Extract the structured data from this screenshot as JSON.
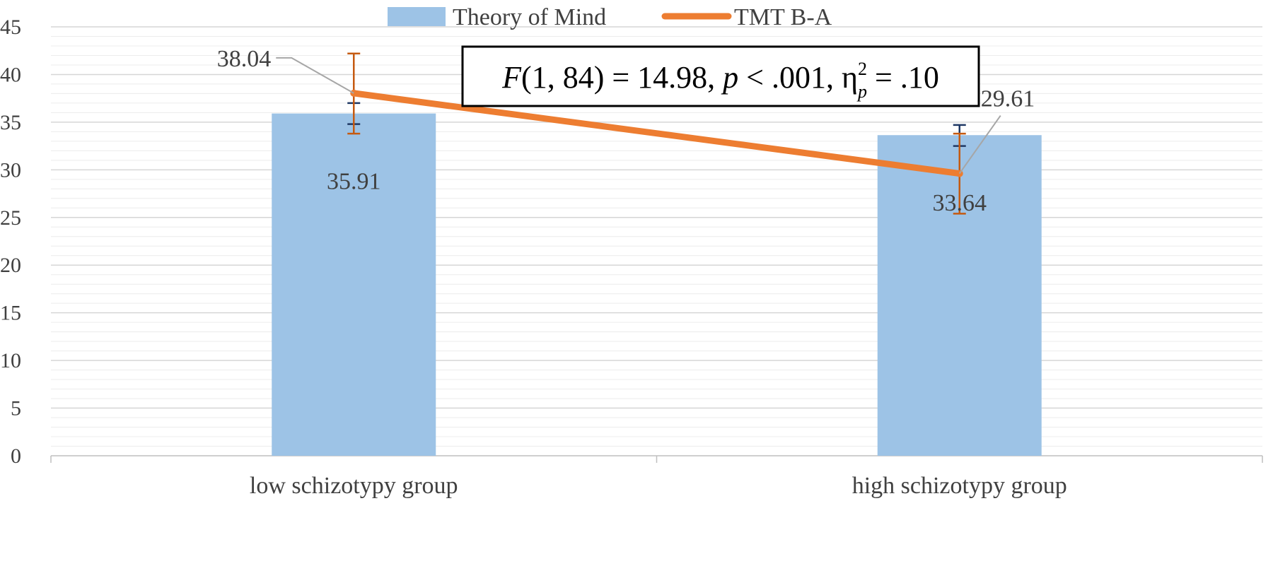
{
  "chart_data": {
    "type": "bar",
    "categories": [
      "low schizotypy group",
      "high schizotypy group"
    ],
    "ylim": [
      0,
      45
    ],
    "yticks": [
      0,
      5,
      10,
      15,
      20,
      25,
      30,
      35,
      40,
      45
    ],
    "minor_gridline_step": 1,
    "legend_position": "top-center",
    "series": [
      {
        "name": "Theory of Mind",
        "kind": "bar",
        "color": "#9DC3E6",
        "values": [
          35.91,
          33.64
        ],
        "labels": [
          "35.91",
          "33.64"
        ],
        "error_upper": [
          37.0,
          34.7
        ],
        "error_lower": [
          34.8,
          32.5
        ],
        "error_color": "#1F3864"
      },
      {
        "name": "TMT B-A",
        "kind": "line",
        "color": "#ED7D31",
        "values": [
          38.04,
          29.61
        ],
        "labels": [
          "38.04",
          "29.61"
        ],
        "error_upper": [
          42.2,
          33.8
        ],
        "error_lower": [
          33.8,
          25.4
        ],
        "error_color": "#C55A11"
      }
    ],
    "annotation": {
      "f_part": "F",
      "df": "(1, 84) = 14.98, ",
      "p_part": "p",
      "p_rest": " < .001, η",
      "eta_sup": "2",
      "eta_sub": "p",
      "eta_rest": " = .10"
    }
  }
}
